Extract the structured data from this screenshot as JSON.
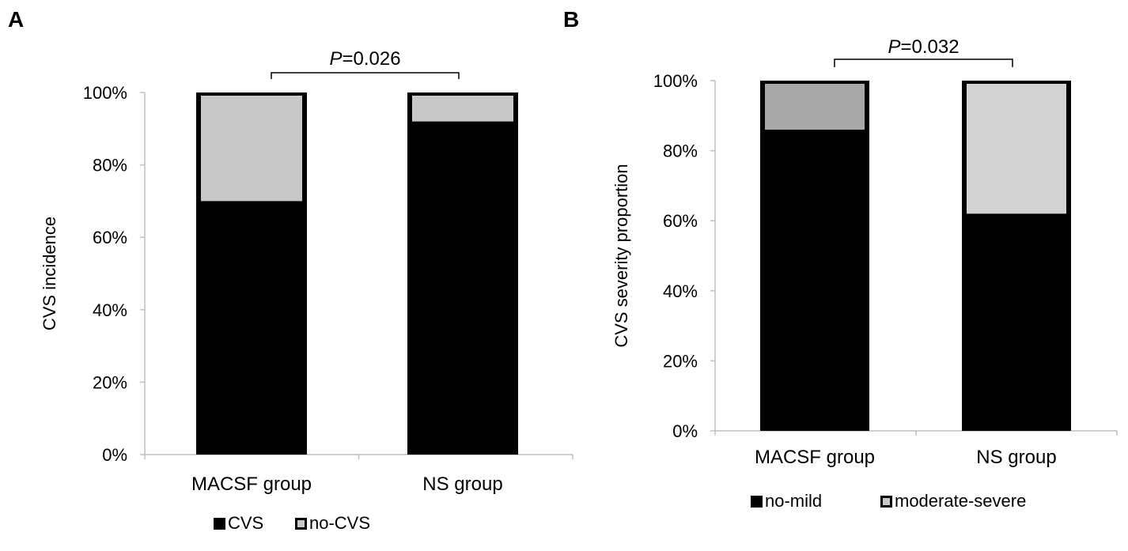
{
  "chart_data": [
    {
      "panel": "A",
      "type": "bar",
      "stacked": true,
      "ylabel": "CVS incidence",
      "ylim": [
        0,
        100
      ],
      "yticks": [
        "0%",
        "20%",
        "40%",
        "60%",
        "80%",
        "100%"
      ],
      "categories": [
        "MACSF group",
        "NS group"
      ],
      "series": [
        {
          "name": "CVS",
          "color": "#000000",
          "values": [
            70,
            92
          ]
        },
        {
          "name": "no-CVS",
          "color": "#c8c8c8",
          "values": [
            30,
            8
          ]
        }
      ],
      "annotation": {
        "p_label": "P",
        "p_value": "=0.026"
      }
    },
    {
      "panel": "B",
      "type": "bar",
      "stacked": true,
      "ylabel": "CVS severity proportion",
      "ylim": [
        0,
        100
      ],
      "yticks": [
        "0%",
        "20%",
        "40%",
        "60%",
        "80%",
        "100%"
      ],
      "categories": [
        "MACSF group",
        "NS group"
      ],
      "series": [
        {
          "name": "no-mild",
          "color": "#000000",
          "values": [
            86,
            62
          ]
        },
        {
          "name": "moderate-severe",
          "color": "#c8c8c8",
          "values": [
            14,
            38
          ]
        }
      ],
      "colors_top": [
        "#a9a9a9",
        "#d3d3d3"
      ],
      "annotation": {
        "p_label": "P",
        "p_value": "=0.032"
      }
    }
  ]
}
